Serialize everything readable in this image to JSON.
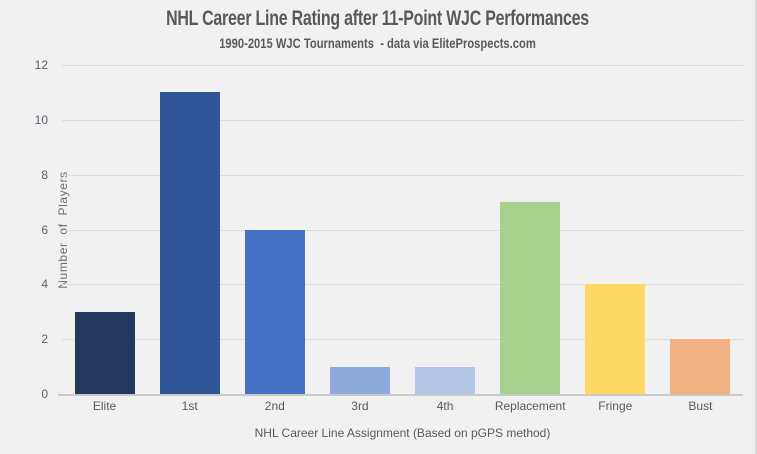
{
  "chart_data": {
    "type": "bar",
    "title": "NHL Career Line Rating after 11-Point WJC Performances",
    "subtitle": "1990-2015 WJC Tournaments  - data via EliteProspects.com",
    "xlabel": "NHL Career Line Assignment (Based on pGPS method)",
    "ylabel": "Number  of  Players",
    "categories": [
      "Elite",
      "1st",
      "2nd",
      "3rd",
      "4th",
      "Replacement",
      "Fringe",
      "Bust"
    ],
    "values": [
      3,
      11,
      6,
      1,
      1,
      7,
      4,
      2
    ],
    "bar_colors": [
      "#24395e",
      "#2f5597",
      "#4472c4",
      "#8faadc",
      "#b4c7e7",
      "#a9d18e",
      "#ffd966",
      "#f2b183"
    ],
    "ylim": [
      0,
      12
    ],
    "yticks": [
      0,
      2,
      4,
      6,
      8,
      10,
      12
    ],
    "grid": "horizontal",
    "legend": "none",
    "colors": {
      "background": "#f1f1f1",
      "gridline": "#dcdcdc",
      "axis_line": "#c9c9c9",
      "title_text": "#595959",
      "tick_text": "#56606e",
      "category_text": "#595959"
    }
  }
}
